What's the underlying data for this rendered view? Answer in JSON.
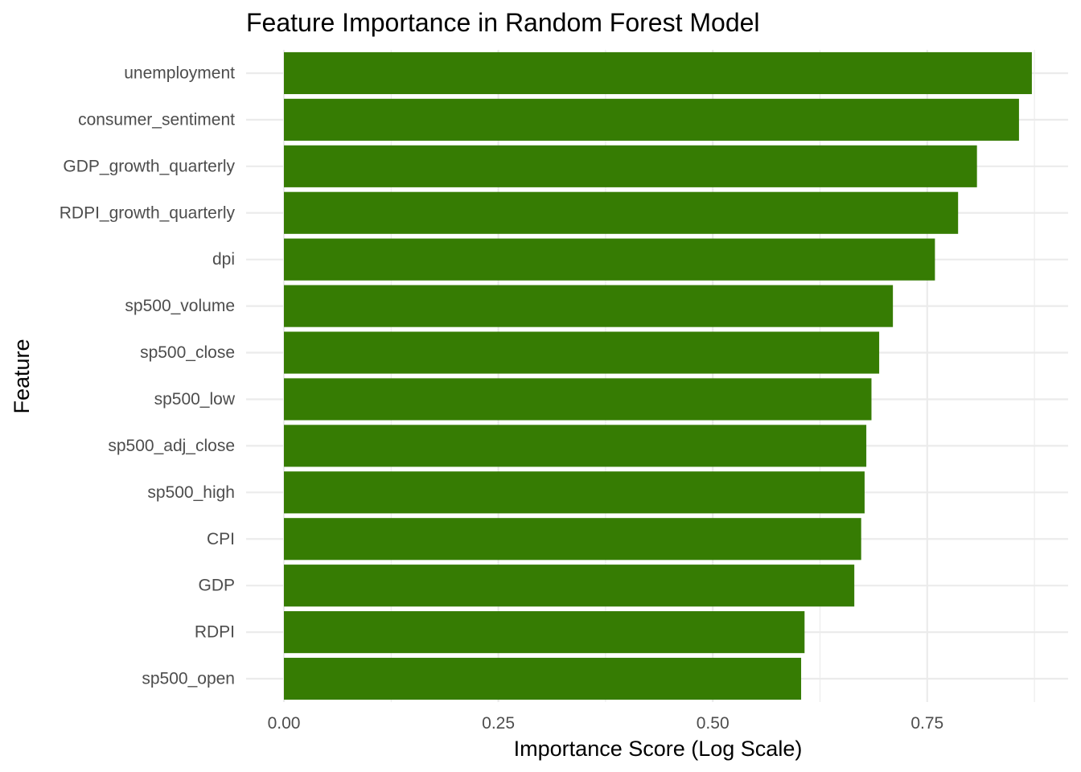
{
  "chart_data": {
    "type": "bar",
    "orientation": "horizontal",
    "title": "Feature Importance in Random Forest Model",
    "xlabel": "Importance Score (Log Scale)",
    "ylabel": "Feature",
    "xlim": [
      0,
      0.88
    ],
    "xticks": [
      0.0,
      0.25,
      0.5,
      0.75
    ],
    "xtick_labels": [
      "0.00",
      "0.25",
      "0.50",
      "0.75"
    ],
    "grid": true,
    "bar_color": "#367C03",
    "categories": [
      "unemployment",
      "consumer_sentiment",
      "GDP_growth_quarterly",
      "RDPI_growth_quarterly",
      "dpi",
      "sp500_volume",
      "sp500_close",
      "sp500_low",
      "sp500_adj_close",
      "sp500_high",
      "CPI",
      "GDP",
      "RDPI",
      "sp500_open"
    ],
    "values": [
      0.872,
      0.857,
      0.808,
      0.786,
      0.759,
      0.71,
      0.694,
      0.685,
      0.679,
      0.677,
      0.673,
      0.665,
      0.607,
      0.603
    ]
  }
}
